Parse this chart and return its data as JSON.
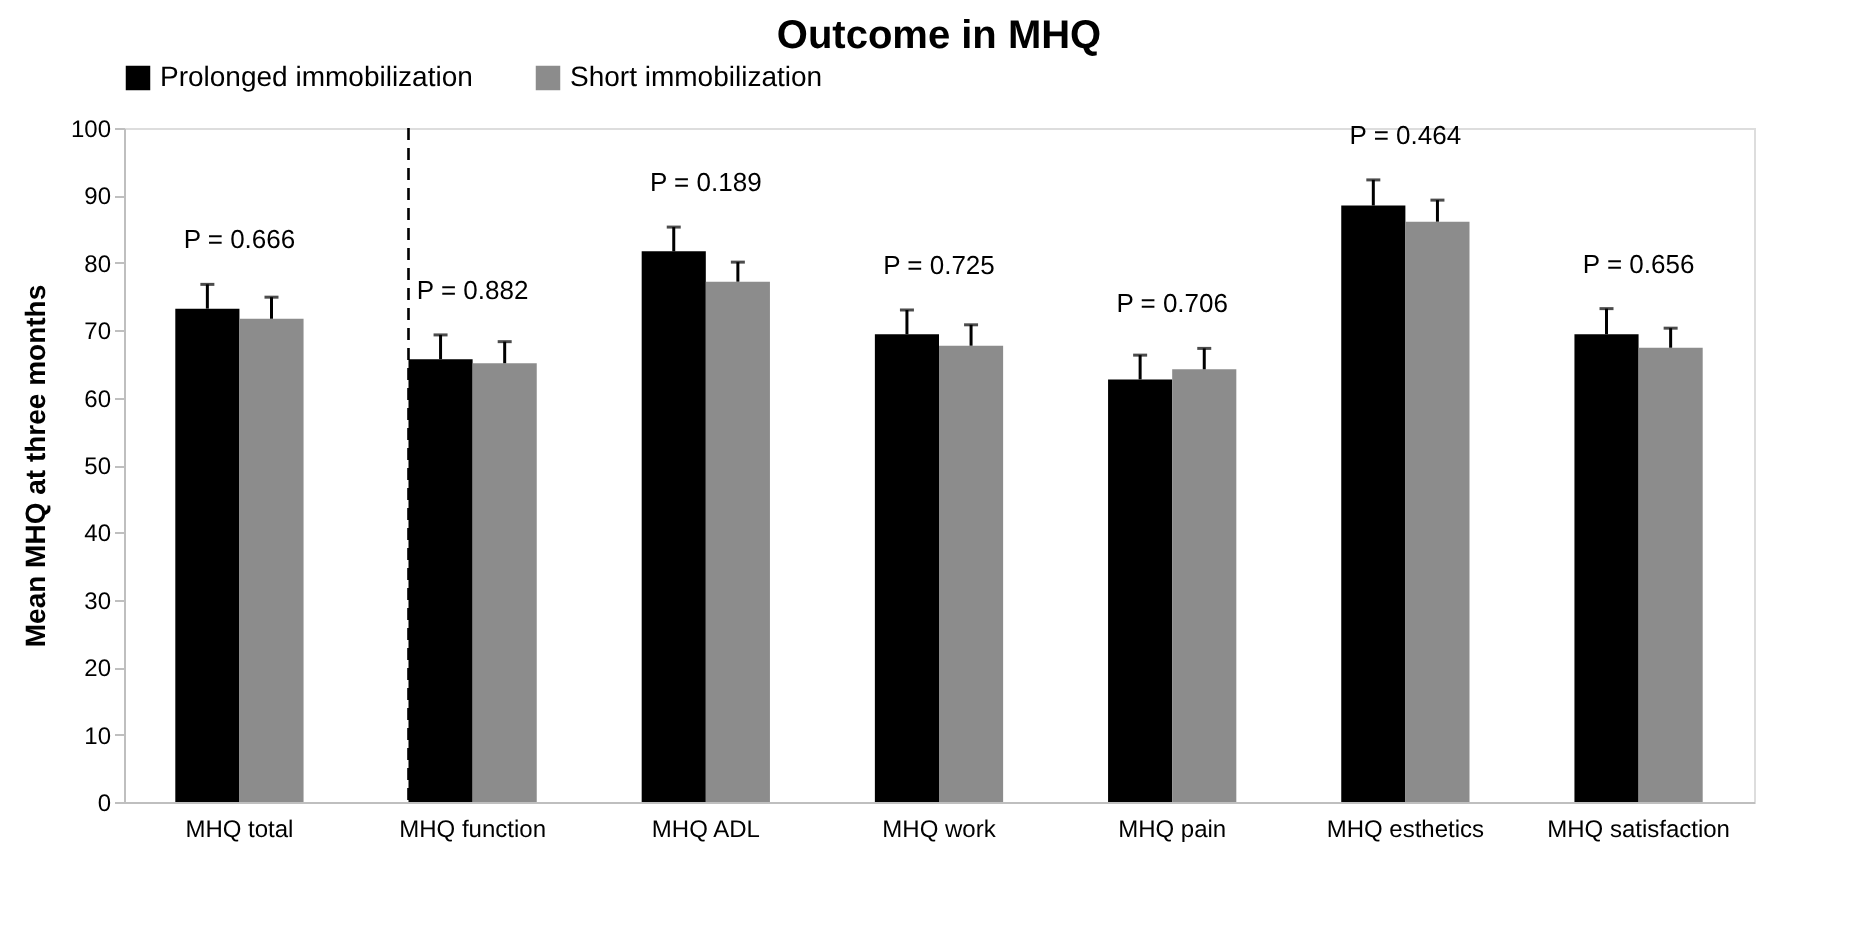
{
  "chart_data": {
    "type": "bar",
    "title": "Outcome in MHQ",
    "ylabel": "Mean MHQ at three months",
    "categories": [
      "MHQ total",
      "MHQ function",
      "MHQ ADL",
      "MHQ work",
      "MHQ pain",
      "MHQ esthetics",
      "MHQ satisfaction"
    ],
    "series": [
      {
        "name": "Prolonged immobilization",
        "color": "#000000",
        "values": [
          73.2,
          65.7,
          81.7,
          69.4,
          62.7,
          88.5,
          69.4
        ],
        "errors": [
          3.6,
          3.6,
          3.6,
          3.6,
          3.6,
          3.8,
          3.8
        ]
      },
      {
        "name": "Short immobilization",
        "color": "#8c8c8c",
        "values": [
          71.7,
          65.1,
          77.2,
          67.7,
          64.2,
          86.1,
          67.4
        ],
        "errors": [
          3.2,
          3.2,
          2.9,
          3.1,
          3.1,
          3.2,
          2.9
        ]
      }
    ],
    "ylim": [
      0,
      100
    ],
    "yticks": [
      0,
      10,
      20,
      30,
      40,
      50,
      60,
      70,
      80,
      90,
      100
    ],
    "grid": false,
    "legend": "top",
    "ref_lines": [
      {
        "axis": "x",
        "value": "MHQ function",
        "line_style": "dashed",
        "color": "#000000"
      }
    ],
    "annotations": [
      "P = 0.666",
      "P = 0.882",
      "P = 0.189",
      "P = 0.725",
      "P = 0.706",
      "P = 0.464",
      "P = 0.656"
    ]
  }
}
